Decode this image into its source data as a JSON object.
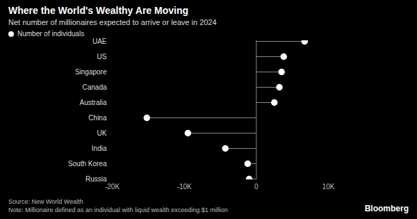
{
  "chart_data": {
    "type": "lollipop",
    "title": "Where the World's Wealthy Are Moving",
    "subtitle": "Net number of millionaires expected to arrive or leave in 2024",
    "orientation": "horizontal",
    "categories": [
      "UAE",
      "US",
      "Singapore",
      "Canada",
      "Australia",
      "China",
      "UK",
      "India",
      "South Korea",
      "Russia"
    ],
    "series": [
      {
        "name": "Number of individuals",
        "color": "#ffffff",
        "values": [
          6700,
          3800,
          3500,
          3200,
          2500,
          -15200,
          -9500,
          -4300,
          -1200,
          -1000
        ]
      }
    ],
    "xlim": [
      -20000,
      10000
    ],
    "xticks": [
      {
        "value": -20000,
        "label": "-20K"
      },
      {
        "value": -10000,
        "label": "-10K"
      },
      0,
      {
        "value": 10000,
        "label": "10K"
      }
    ],
    "grid": false,
    "legend": "top-left",
    "source": "Source: New World Wealth",
    "note": "Note: Millionaire defined as an individual with liquid wealth exceeding $1 million",
    "credit": "Bloomberg"
  }
}
